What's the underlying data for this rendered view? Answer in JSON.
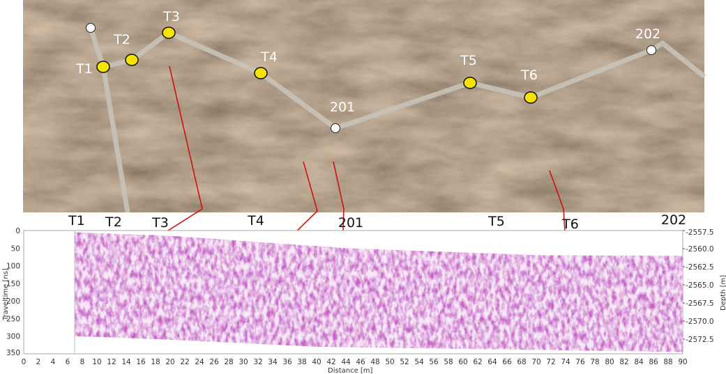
{
  "aerial": {
    "waypoints": [
      "201",
      "202"
    ],
    "targets": [
      "T1",
      "T2",
      "T3",
      "T4",
      "T5",
      "T6"
    ],
    "colors": {
      "target_marker": "#f5e400",
      "waypoint_marker": "#ffffff",
      "path": "#c8c2b8",
      "link_line": "#d01010"
    }
  },
  "radargram": {
    "top_labels": [
      "T1",
      "T2",
      "T3",
      "T4",
      "201",
      "T5",
      "T6",
      "202"
    ],
    "x_axis": {
      "label": "Distance [m]",
      "min": 0,
      "max": 90,
      "ticks": [
        0,
        2,
        4,
        6,
        8,
        10,
        12,
        14,
        16,
        18,
        20,
        22,
        24,
        26,
        28,
        30,
        32,
        34,
        36,
        38,
        40,
        42,
        44,
        46,
        48,
        50,
        52,
        54,
        56,
        58,
        60,
        62,
        64,
        66,
        68,
        70,
        72,
        74,
        76,
        78,
        80,
        82,
        84,
        86,
        88,
        90
      ]
    },
    "y_axis_left": {
      "label": "Traveltime [ns]",
      "min": 0,
      "max": 350,
      "ticks": [
        0,
        50,
        100,
        150,
        200,
        250,
        300,
        350
      ]
    },
    "y_axis_right": {
      "label": "Depth [m]",
      "ticks": [
        "-2557.5",
        "-2560.0",
        "-2562.5",
        "-2565.0",
        "-2567.5",
        "-2570.0",
        "-2572.5"
      ]
    },
    "colormap": "#8a1f8a"
  }
}
